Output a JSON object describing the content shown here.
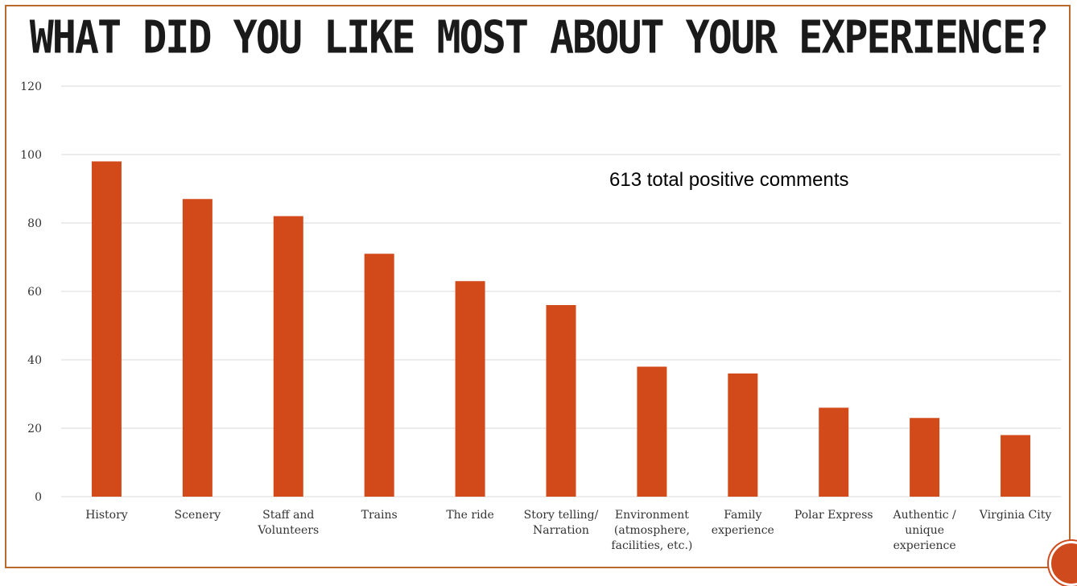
{
  "slide": {
    "title": "WHAT DID YOU LIKE MOST ABOUT YOUR EXPERIENCE?",
    "annotation": "613 total positive comments"
  },
  "colors": {
    "bar": "#d24a1a",
    "grid": "#d9d9d9",
    "frame": "#b86a2a"
  },
  "chart_data": {
    "type": "bar",
    "categories": [
      "History",
      "Scenery",
      "Staff and Volunteers",
      "Trains",
      "The ride",
      "Story telling/ Narration",
      "Environment (atmosphere, facilities, etc.)",
      "Family experience",
      "Polar Express",
      "Authentic / unique experience",
      "Virginia City"
    ],
    "category_lines": [
      [
        "History"
      ],
      [
        "Scenery"
      ],
      [
        "Staff and",
        "Volunteers"
      ],
      [
        "Trains"
      ],
      [
        "The ride"
      ],
      [
        "Story telling/",
        "Narration"
      ],
      [
        "Environment",
        "(atmosphere,",
        "facilities, etc.)"
      ],
      [
        "Family",
        "experience"
      ],
      [
        "Polar Express"
      ],
      [
        "Authentic /",
        "unique",
        "experience"
      ],
      [
        "Virginia City"
      ]
    ],
    "values": [
      98,
      87,
      82,
      71,
      63,
      56,
      38,
      36,
      26,
      23,
      18
    ],
    "ylim": [
      0,
      120
    ],
    "yticks": [
      0,
      20,
      40,
      60,
      80,
      100,
      120
    ],
    "grid": true,
    "legend": "none",
    "title": "WHAT DID YOU LIKE MOST ABOUT YOUR EXPERIENCE?",
    "xlabel": "",
    "ylabel": ""
  }
}
